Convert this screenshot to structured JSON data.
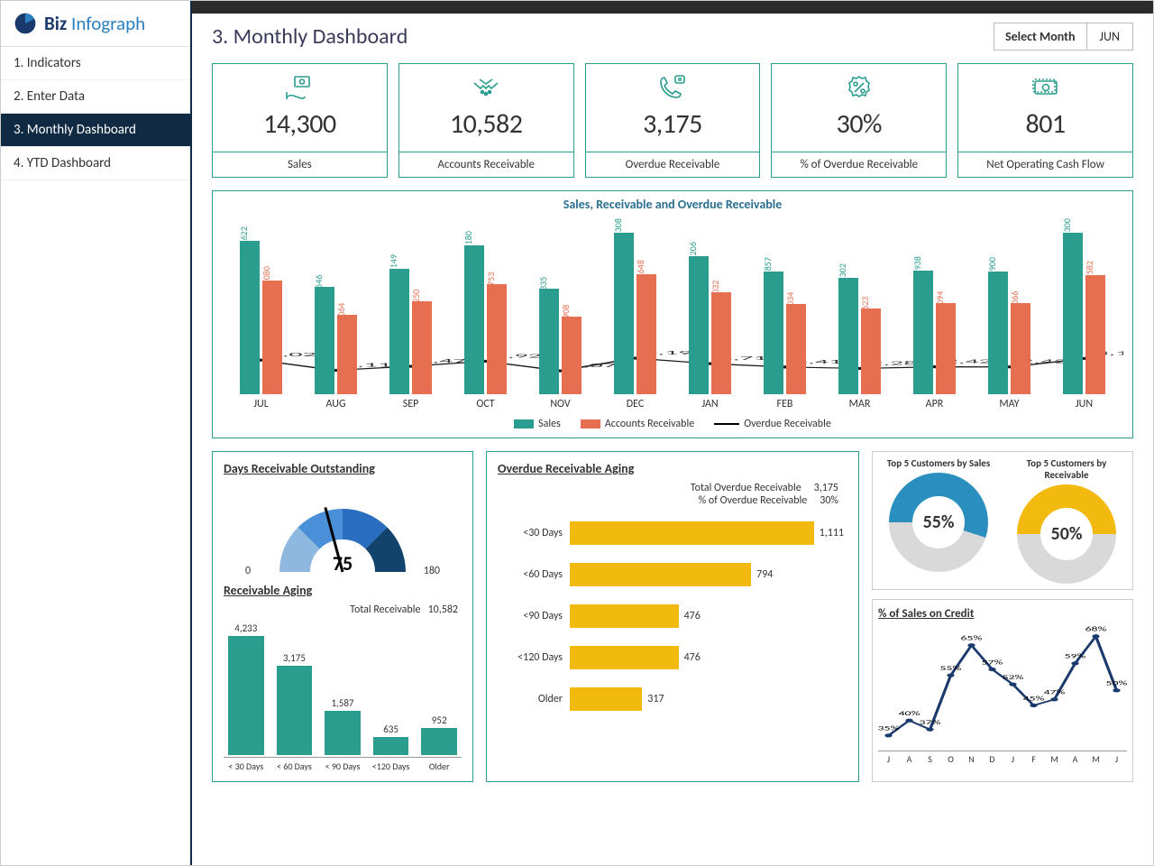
{
  "brand": {
    "biz": "Biz",
    "info": "Infograph"
  },
  "nav": {
    "items": [
      "1. Indicators",
      "2. Enter Data",
      "3. Monthly Dashboard",
      "4. YTD Dashboard"
    ],
    "active_index": 2
  },
  "page_title": "3. Monthly Dashboard",
  "month_selector": {
    "label": "Select Month",
    "value": "JUN"
  },
  "kpis": [
    {
      "value": "14,300",
      "label": "Sales",
      "icon": "money-hand-icon"
    },
    {
      "value": "10,582",
      "label": "Accounts Receivable",
      "icon": "handshake-icon"
    },
    {
      "value": "3,175",
      "label": "Overdue Receivable",
      "icon": "phone-icon"
    },
    {
      "value": "30%",
      "label": "% of Overdue Receivable",
      "icon": "percent-badge-icon"
    },
    {
      "value": "801",
      "label": "Net Operating Cash Flow",
      "icon": "cash-icon"
    }
  ],
  "main_chart": {
    "title": "Sales, Receivable and Overdue Receivable",
    "type": "bar+line",
    "months": [
      "JUL",
      "AUG",
      "SEP",
      "OCT",
      "NOV",
      "DEC",
      "JAN",
      "FEB",
      "MAR",
      "APR",
      "MAY",
      "JUN"
    ],
    "sales": [
      13622,
      9546,
      11149,
      13180,
      9335,
      14308,
      12206,
      10857,
      10302,
      10938,
      10900,
      14300
    ],
    "accounts_receivable": [
      10080,
      7064,
      8250,
      9753,
      6908,
      10648,
      9032,
      8034,
      7623,
      8094,
      8066,
      10582
    ],
    "overdue_receivable": [
      3024,
      2119,
      2475,
      2926,
      2077,
      3194,
      2710,
      2410,
      2287,
      2428,
      2420,
      3175
    ],
    "ymax": 16000,
    "colors": {
      "sales": "#2a9d8f",
      "ar": "#e76f51",
      "overdue": "#1a1a1a"
    },
    "legend": [
      "Sales",
      "Accounts Receivable",
      "Overdue Receivable"
    ]
  },
  "dro": {
    "title": "Days Receivable Outstanding",
    "value": 75,
    "min": 0,
    "max": 180,
    "min_label": "0",
    "max_label": "180",
    "value_label": "75",
    "segment_colors": [
      "#8fb8e0",
      "#4a90d9",
      "#2a6fbf",
      "#12436d"
    ],
    "needle_color": "#000000"
  },
  "receivable_aging": {
    "title": "Receivable Aging",
    "total_label": "Total Receivable",
    "total_value": "10,582",
    "categories": [
      "< 30 Days",
      "< 60 Days",
      "< 90 Days",
      "<120 Days",
      "Older"
    ],
    "values": [
      4233,
      3175,
      1587,
      635,
      952
    ],
    "value_labels": [
      "4,233",
      "3,175",
      "1,587",
      "635",
      "952"
    ],
    "ymax": 4500,
    "bar_color": "#2a9d8f"
  },
  "overdue_aging": {
    "title": "Overdue Receivable Aging",
    "summary": [
      {
        "label": "Total  Overdue Receivable",
        "value": "3,175"
      },
      {
        "label": "% of Overdue Receivable",
        "value": "30%"
      }
    ],
    "categories": [
      "<30 Days",
      "<60 Days",
      "<90 Days",
      "<120 Days",
      "Older"
    ],
    "values": [
      1111,
      794,
      476,
      476,
      317
    ],
    "value_labels": [
      "1,111",
      "794",
      "476",
      "476",
      "317"
    ],
    "xmax": 1200,
    "bar_color": "#f2b90f"
  },
  "donuts": {
    "sales": {
      "title": "Top 5 Customers by Sales",
      "pct": 55,
      "pct_label": "55%",
      "color": "#2a8fbf",
      "rest_color": "#d9d9d9"
    },
    "receivable": {
      "title": "Top 5 Customers by Receivable",
      "pct": 50,
      "pct_label": "50%",
      "color": "#f2b90f",
      "rest_color": "#d9d9d9"
    }
  },
  "sales_on_credit": {
    "title": "% of Sales on Credit",
    "months": [
      "J",
      "A",
      "S",
      "O",
      "N",
      "D",
      "J",
      "F",
      "M",
      "A",
      "M",
      "J"
    ],
    "values": [
      35,
      40,
      37,
      55,
      65,
      57,
      52,
      45,
      47,
      59,
      68,
      50
    ],
    "value_labels": [
      "35%",
      "40%",
      "37%",
      "55%",
      "65%",
      "57%",
      "52%",
      "45%",
      "47%",
      "59%",
      "68%",
      "50%"
    ],
    "ylim": [
      30,
      72
    ],
    "line_color": "#1a3a6e",
    "marker_color": "#1a3a6e"
  }
}
